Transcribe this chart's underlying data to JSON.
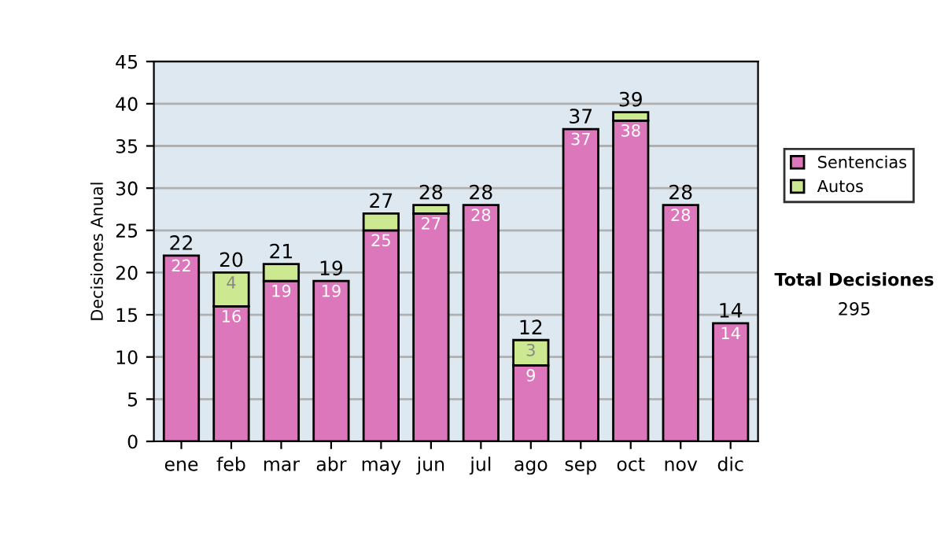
{
  "chart_data": {
    "type": "bar",
    "stacked": true,
    "ylabel": "Decisiones Anual",
    "categories": [
      "ene",
      "feb",
      "mar",
      "abr",
      "may",
      "jun",
      "jul",
      "ago",
      "sep",
      "oct",
      "nov",
      "dic"
    ],
    "series": [
      {
        "name": "Sentencias",
        "color": "#dd77bb",
        "values": [
          22,
          16,
          19,
          19,
          25,
          27,
          28,
          9,
          37,
          38,
          28,
          14
        ],
        "value_labels": [
          "22",
          "16",
          "19",
          "19",
          "25",
          "27",
          "28",
          "9",
          "37",
          "38",
          "28",
          "14"
        ]
      },
      {
        "name": "Autos",
        "color": "#cce891",
        "values": [
          null,
          4,
          2,
          null,
          2,
          1,
          null,
          3,
          null,
          1,
          null,
          null
        ],
        "value_labels": [
          null,
          "4",
          null,
          null,
          null,
          null,
          null,
          "3",
          null,
          null,
          null,
          null
        ]
      }
    ],
    "totals": [
      "22",
      "20",
      "21",
      "19",
      "27",
      "28",
      "28",
      "12",
      "37",
      "39",
      "28",
      "14"
    ],
    "ylim": [
      0,
      45
    ],
    "yticks": [
      0,
      5,
      10,
      15,
      20,
      25,
      30,
      35,
      40,
      45
    ],
    "grid": "y",
    "legend": "right",
    "annotations": [
      "Total Decisiones",
      "295"
    ]
  }
}
